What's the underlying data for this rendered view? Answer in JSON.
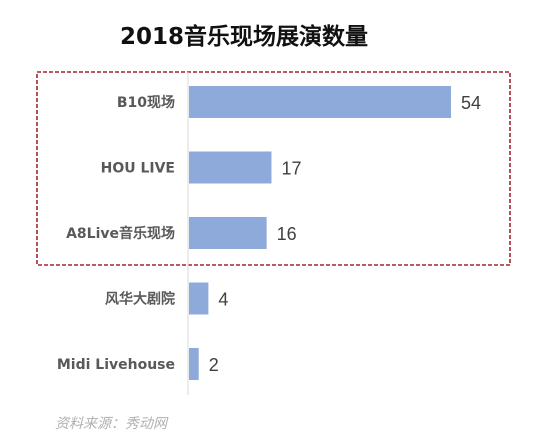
{
  "chart_data": {
    "type": "bar",
    "orientation": "horizontal",
    "title": "2018音乐现场展演数量",
    "categories": [
      "B10现场",
      "HOU LIVE",
      "A8Live音乐现场",
      "风华大剧院",
      "Midi Livehouse"
    ],
    "values": [
      54,
      17,
      16,
      4,
      2
    ],
    "xlim": [
      0,
      54
    ],
    "grid": false,
    "highlight_box": {
      "categories": [
        "B10现场",
        "HOU LIVE",
        "A8Live音乐现场"
      ],
      "color": "#a3252b",
      "style": "dashed"
    },
    "bar_color": "#8eaadb",
    "source": "资料来源：秀动网"
  }
}
